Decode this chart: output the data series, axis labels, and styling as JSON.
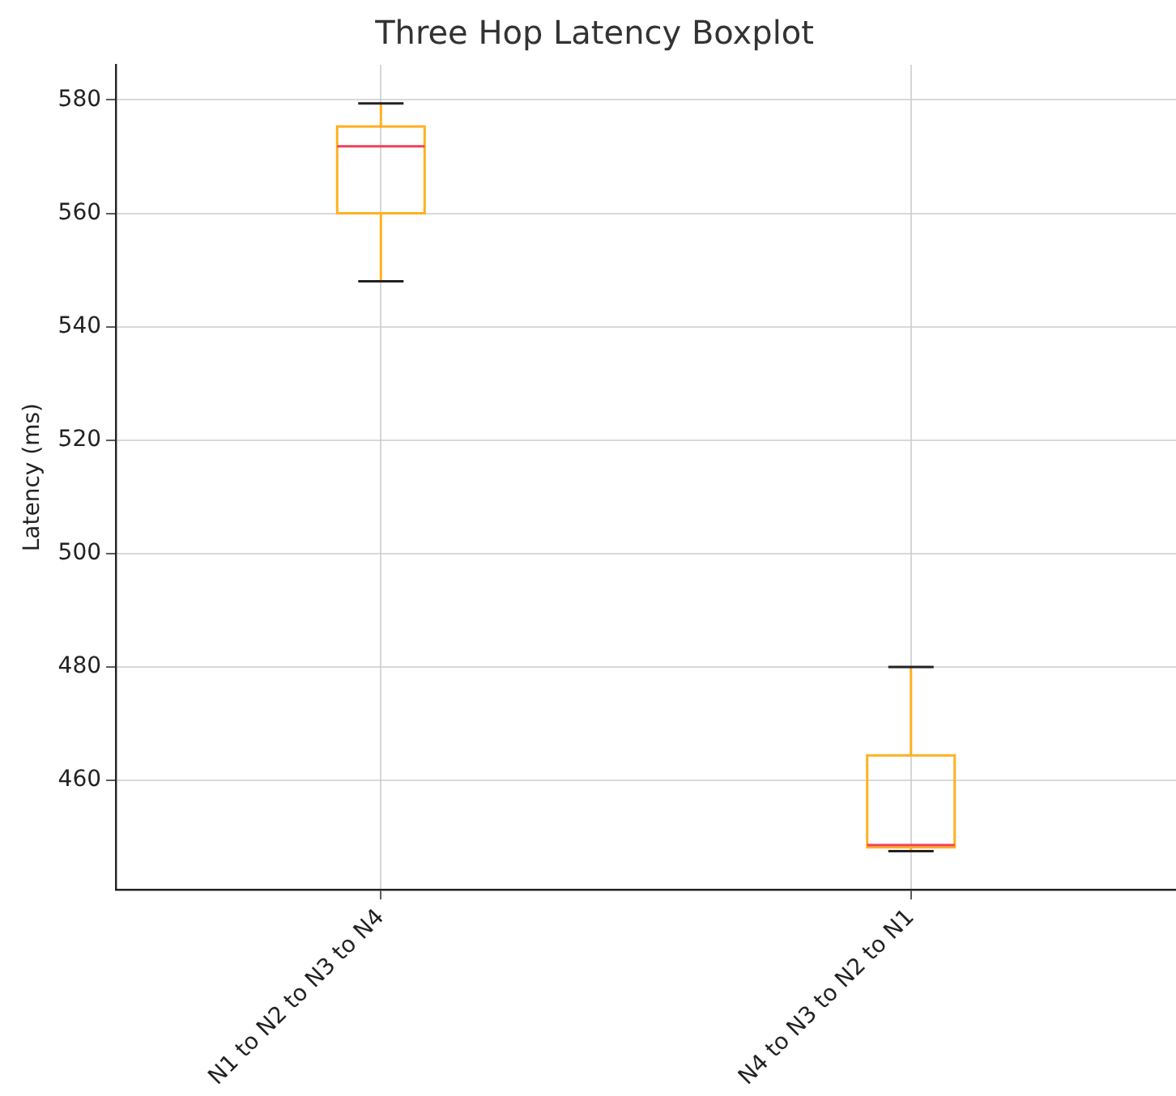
{
  "chart_data": {
    "type": "box",
    "title": "Three Hop Latency Boxplot",
    "ylabel": "Latency (ms)",
    "categories": [
      "N1 to N2 to N3 to N4",
      "N4 to N3 to N2 to N1"
    ],
    "boxes": [
      {
        "low": 548,
        "q1": 560,
        "median": 571.8,
        "q3": 575.3,
        "high": 579.4
      },
      {
        "low": 447.5,
        "q1": 448.2,
        "median": 448.6,
        "q3": 464.4,
        "high": 480
      }
    ],
    "color": "#ffb020",
    "ylim": [
      440.7,
      586.2
    ],
    "yticks": [
      460,
      480,
      500,
      520,
      540,
      560,
      580
    ],
    "grid": true,
    "legend": false
  }
}
